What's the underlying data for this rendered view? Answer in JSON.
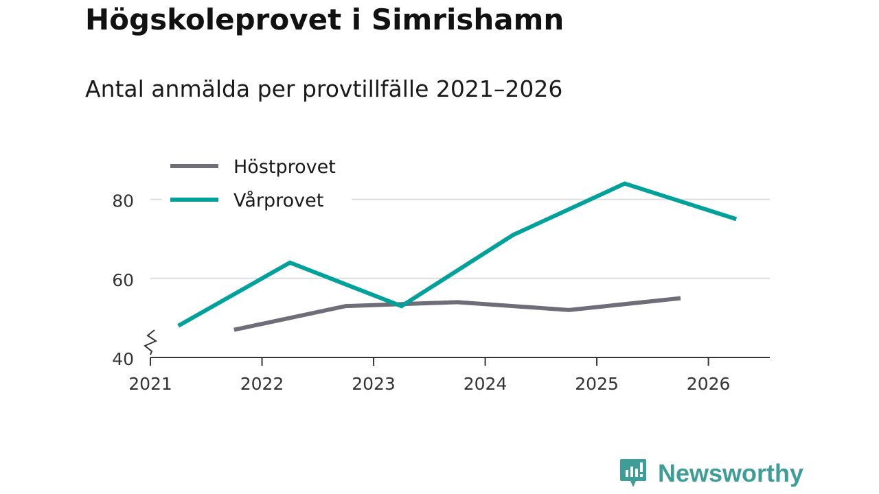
{
  "chart_data": {
    "type": "line",
    "title": "Högskoleprovet i Simrishamn",
    "subtitle": "Antal anmälda per provtillfälle 2021–2026",
    "xlabel": "",
    "ylabel": "",
    "xlim": [
      2021,
      2026.55
    ],
    "ylim": [
      40,
      90
    ],
    "y_ticks": [
      {
        "value": 40,
        "label": "40"
      },
      {
        "value": 60,
        "label": "60"
      },
      {
        "value": 80,
        "label": "80"
      }
    ],
    "x_ticks": [
      {
        "value": 2021,
        "label": "2021"
      },
      {
        "value": 2022,
        "label": "2022"
      },
      {
        "value": 2023,
        "label": "2023"
      },
      {
        "value": 2024,
        "label": "2024"
      },
      {
        "value": 2025,
        "label": "2025"
      },
      {
        "value": 2026,
        "label": "2026"
      }
    ],
    "grid": true,
    "axis_break": true,
    "legend_position": "top-left",
    "series": [
      {
        "name": "Höstprovet",
        "color": "#6f6e78",
        "points": [
          {
            "x": 2021.75,
            "y": 47
          },
          {
            "x": 2022.75,
            "y": 53
          },
          {
            "x": 2023.75,
            "y": 54
          },
          {
            "x": 2024.75,
            "y": 52
          },
          {
            "x": 2025.75,
            "y": 55
          }
        ]
      },
      {
        "name": "Vårprovet",
        "color": "#00a19a",
        "points": [
          {
            "x": 2021.25,
            "y": 48
          },
          {
            "x": 2022.25,
            "y": 64
          },
          {
            "x": 2023.25,
            "y": 53
          },
          {
            "x": 2024.25,
            "y": 71
          },
          {
            "x": 2025.25,
            "y": 84
          },
          {
            "x": 2026.25,
            "y": 75
          }
        ]
      }
    ]
  },
  "brand": {
    "name": "Newsworthy",
    "color": "#3f9d97"
  },
  "colors": {
    "gridline": "#dddddd",
    "axis": "#333333",
    "text": "#333333"
  }
}
